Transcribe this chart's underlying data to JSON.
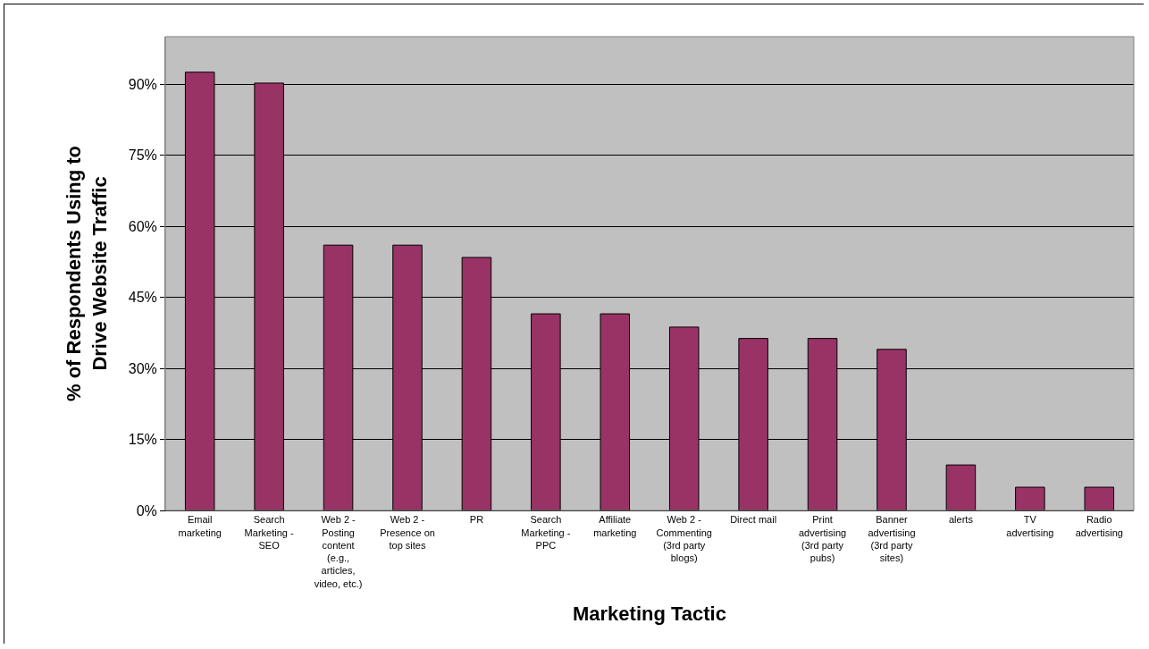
{
  "chart_data": {
    "type": "bar",
    "xlabel": "Marketing Tactic",
    "ylabel": "% of Respondents Using to Drive Website Traffic",
    "categories": [
      "Email marketing",
      "Search Marketing - SEO",
      "Web 2 - Posting content (e.g., articles, video, etc.)",
      "Web 2 - Presence on top sites",
      "PR",
      "Search Marketing - PPC",
      "Affiliate marketing",
      "Web 2 - Commenting (3rd party blogs)",
      "Direct mail",
      "Print advertising (3rd party pubs)",
      "Banner advertising (3rd party sites)",
      "alerts",
      "TV advertising",
      "Radio advertising"
    ],
    "values": [
      92.5,
      90.2,
      56,
      56,
      53.4,
      41.5,
      41.5,
      38.7,
      36.3,
      36.3,
      34,
      9.6,
      4.9,
      4.9
    ],
    "color": "#993366",
    "ylim": [
      0,
      100
    ],
    "yticks": [
      {
        "value": 0,
        "label": "0%"
      },
      {
        "value": 15,
        "label": "15%"
      },
      {
        "value": 30,
        "label": "30%"
      },
      {
        "value": 45,
        "label": "45%"
      },
      {
        "value": 60,
        "label": "60%"
      },
      {
        "value": 75,
        "label": "75%"
      },
      {
        "value": 90,
        "label": "90%"
      }
    ],
    "grid": "y",
    "legend": false
  }
}
